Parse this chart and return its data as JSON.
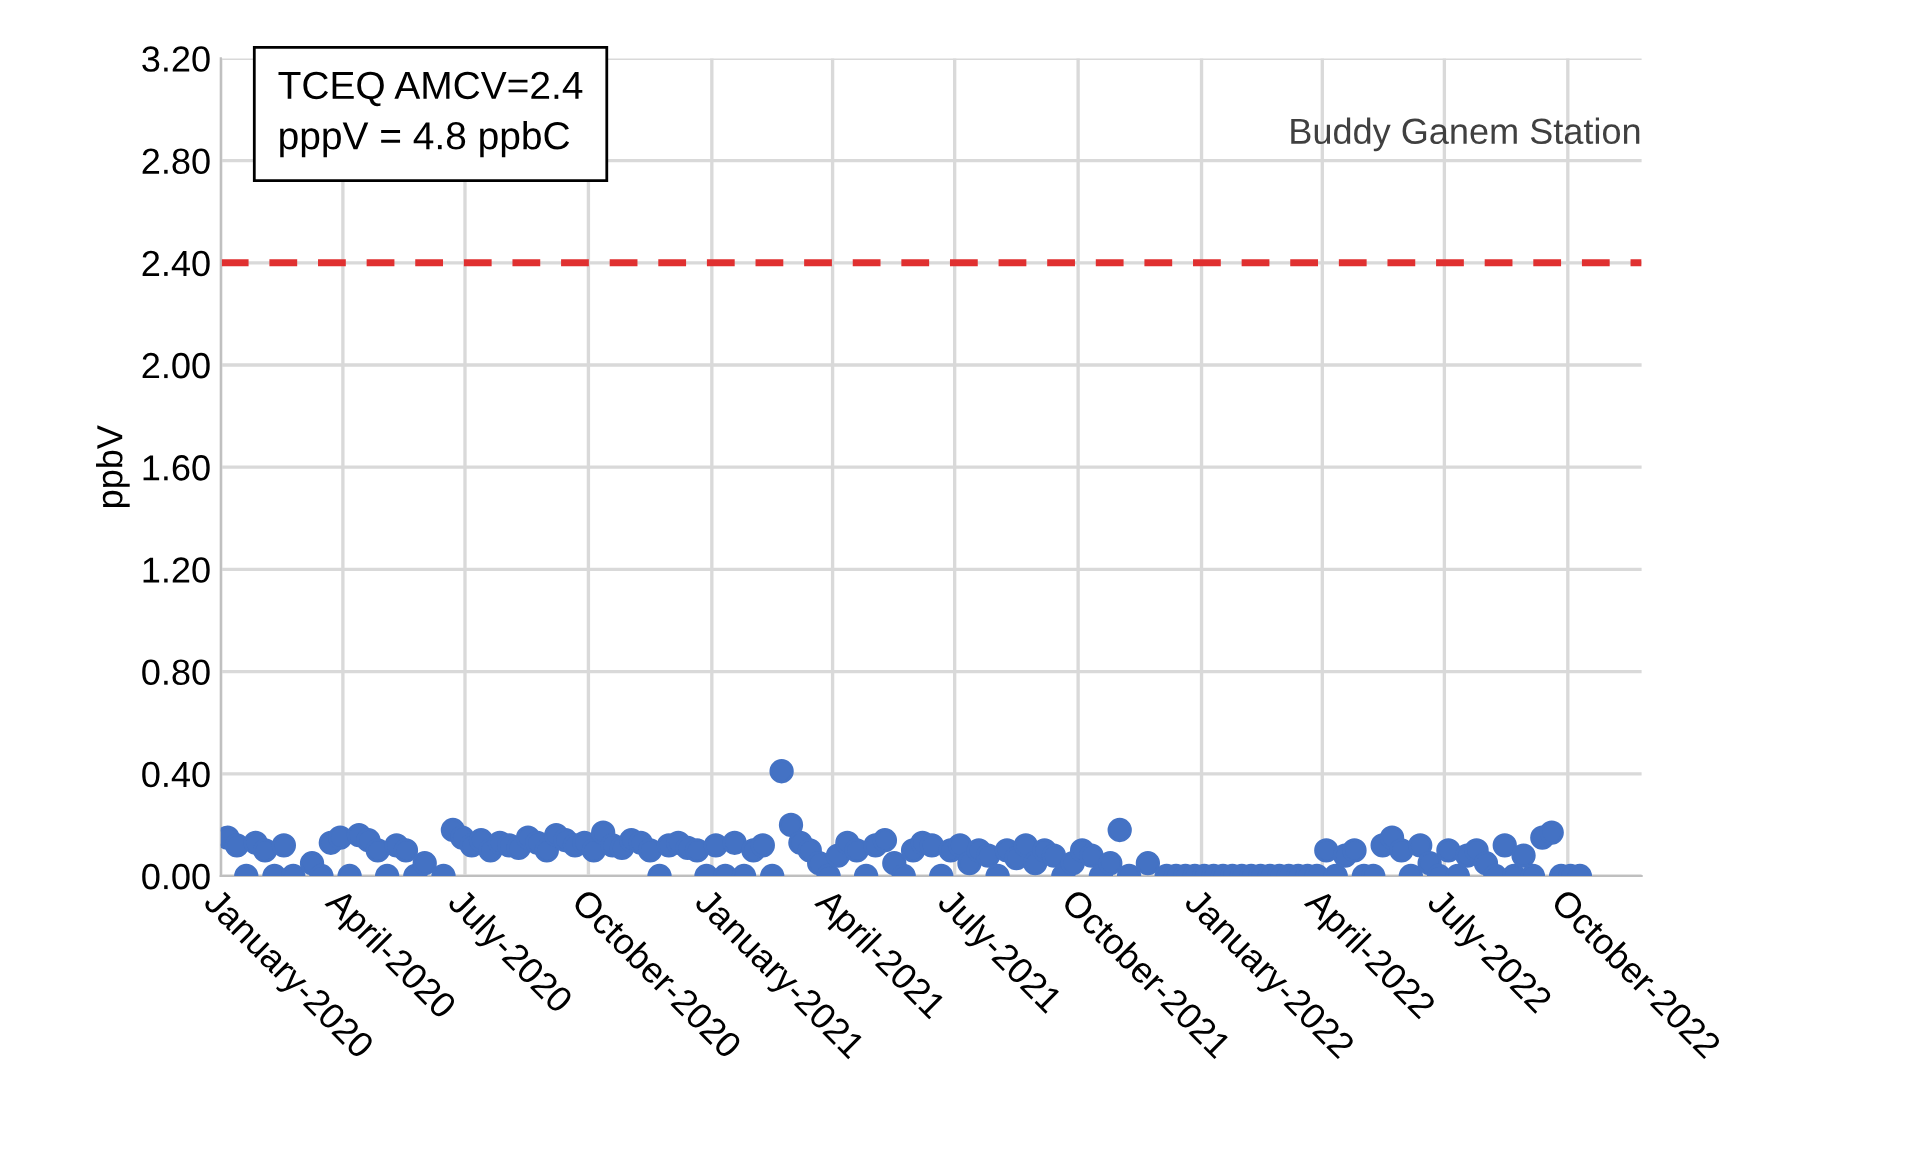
{
  "chart_data": {
    "type": "scatter",
    "title": "Buddy Ganem Station",
    "ylabel": "ppbV",
    "annotations": [
      "TCEQ AMCV=2.4\npppV = 4.8 ppbC"
    ],
    "ref_lines": [
      {
        "axis": "y",
        "value": 2.4,
        "color": "#e03030",
        "line_style": "dashed"
      }
    ],
    "x": [
      "2020-01-06",
      "2020-01-13",
      "2020-01-20",
      "2020-01-27",
      "2020-02-03",
      "2020-02-10",
      "2020-02-17",
      "2020-02-24",
      "2020-03-02",
      "2020-03-09",
      "2020-03-16",
      "2020-03-23",
      "2020-03-30",
      "2020-04-06",
      "2020-04-13",
      "2020-04-20",
      "2020-04-27",
      "2020-05-04",
      "2020-05-11",
      "2020-05-18",
      "2020-05-25",
      "2020-06-01",
      "2020-06-08",
      "2020-06-15",
      "2020-06-22",
      "2020-06-29",
      "2020-07-06",
      "2020-07-13",
      "2020-07-20",
      "2020-07-27",
      "2020-08-03",
      "2020-08-10",
      "2020-08-17",
      "2020-08-24",
      "2020-08-31",
      "2020-09-07",
      "2020-09-14",
      "2020-09-21",
      "2020-09-28",
      "2020-10-05",
      "2020-10-12",
      "2020-10-19",
      "2020-10-26",
      "2020-11-02",
      "2020-11-09",
      "2020-11-16",
      "2020-11-23",
      "2020-11-30",
      "2020-12-07",
      "2020-12-14",
      "2020-12-21",
      "2020-12-28",
      "2021-01-04",
      "2021-01-11",
      "2021-01-18",
      "2021-01-25",
      "2021-02-01",
      "2021-02-08",
      "2021-02-15",
      "2021-02-22",
      "2021-03-01",
      "2021-03-08",
      "2021-03-15",
      "2021-03-22",
      "2021-03-29",
      "2021-04-05",
      "2021-04-12",
      "2021-04-19",
      "2021-04-26",
      "2021-05-03",
      "2021-05-10",
      "2021-05-17",
      "2021-05-24",
      "2021-05-31",
      "2021-06-07",
      "2021-06-14",
      "2021-06-21",
      "2021-06-28",
      "2021-07-05",
      "2021-07-12",
      "2021-07-19",
      "2021-07-26",
      "2021-08-02",
      "2021-08-09",
      "2021-08-16",
      "2021-08-23",
      "2021-08-30",
      "2021-09-06",
      "2021-09-13",
      "2021-09-20",
      "2021-09-27",
      "2021-10-04",
      "2021-10-11",
      "2021-10-18",
      "2021-10-25",
      "2021-11-01",
      "2021-11-08",
      "2021-11-15",
      "2021-11-22",
      "2021-11-29",
      "2021-12-06",
      "2021-12-13",
      "2021-12-20",
      "2021-12-27",
      "2022-01-03",
      "2022-01-10",
      "2022-01-17",
      "2022-01-24",
      "2022-01-31",
      "2022-02-07",
      "2022-02-14",
      "2022-02-21",
      "2022-02-28",
      "2022-03-07",
      "2022-03-14",
      "2022-03-21",
      "2022-03-28",
      "2022-04-04",
      "2022-04-11",
      "2022-04-18",
      "2022-04-25",
      "2022-05-02",
      "2022-05-09",
      "2022-05-16",
      "2022-05-23",
      "2022-05-30",
      "2022-06-06",
      "2022-06-13",
      "2022-06-20",
      "2022-06-27",
      "2022-07-04",
      "2022-07-11",
      "2022-07-18",
      "2022-07-25",
      "2022-08-01",
      "2022-08-08",
      "2022-08-15",
      "2022-08-22",
      "2022-08-29",
      "2022-09-05",
      "2022-09-12",
      "2022-09-19",
      "2022-09-26",
      "2022-10-03",
      "2022-10-10"
    ],
    "series": [
      {
        "color": "#4472c4",
        "values": [
          0.15,
          0.12,
          0.0,
          0.13,
          0.1,
          0.0,
          0.12,
          0.0,
          null,
          0.05,
          0.0,
          0.13,
          0.15,
          0.0,
          0.16,
          0.14,
          0.1,
          0.0,
          0.12,
          0.1,
          0.0,
          0.05,
          null,
          0.0,
          0.18,
          0.15,
          0.12,
          0.14,
          0.1,
          0.13,
          0.12,
          0.11,
          0.15,
          0.13,
          0.1,
          0.16,
          0.14,
          0.12,
          0.13,
          0.1,
          0.17,
          0.12,
          0.11,
          0.14,
          0.13,
          0.1,
          0.0,
          0.12,
          0.13,
          0.11,
          0.1,
          0.0,
          0.12,
          0.0,
          0.13,
          0.0,
          0.1,
          0.12,
          0.0,
          0.41,
          0.2,
          0.13,
          0.1,
          0.05,
          0.0,
          0.08,
          0.13,
          0.1,
          0.0,
          0.12,
          0.14,
          0.05,
          0.0,
          0.1,
          0.13,
          0.12,
          0.0,
          0.1,
          0.12,
          0.05,
          0.1,
          0.08,
          0.0,
          0.1,
          0.07,
          0.12,
          0.05,
          0.1,
          0.08,
          0.0,
          0.05,
          0.1,
          0.08,
          0.0,
          0.05,
          0.18,
          0.0,
          null,
          0.05,
          null,
          0.0,
          0.0,
          0.0,
          0.0,
          0.0,
          0.0,
          0.0,
          0.0,
          0.0,
          0.0,
          0.0,
          0.0,
          0.0,
          0.0,
          0.0,
          0.0,
          0.0,
          0.1,
          0.0,
          0.08,
          0.1,
          0.0,
          0.0,
          0.12,
          0.15,
          0.1,
          0.0,
          0.12,
          0.05,
          0.0,
          0.1,
          0.0,
          0.08,
          0.1,
          0.05,
          0.0,
          0.12,
          0.0,
          0.08,
          0.0,
          0.15,
          0.17,
          0.0,
          0.0,
          0.0
        ]
      }
    ],
    "xlim": [
      "2020-01-01",
      "2022-11-25"
    ],
    "xticks": [
      {
        "value": "2020-01-01",
        "label": "January-2020"
      },
      {
        "value": "2020-04-01",
        "label": "April-2020"
      },
      {
        "value": "2020-07-01",
        "label": "July-2020"
      },
      {
        "value": "2020-10-01",
        "label": "October-2020"
      },
      {
        "value": "2021-01-01",
        "label": "January-2021"
      },
      {
        "value": "2021-04-01",
        "label": "April-2021"
      },
      {
        "value": "2021-07-01",
        "label": "July-2021"
      },
      {
        "value": "2021-10-01",
        "label": "October-2021"
      },
      {
        "value": "2022-01-01",
        "label": "January-2022"
      },
      {
        "value": "2022-04-01",
        "label": "April-2022"
      },
      {
        "value": "2022-07-01",
        "label": "July-2022"
      },
      {
        "value": "2022-10-01",
        "label": "October-2022"
      }
    ],
    "ylim": [
      0,
      3.2
    ],
    "yticks": [
      {
        "value": 0,
        "label": "0.00"
      },
      {
        "value": 0.4,
        "label": "0.40"
      },
      {
        "value": 0.8,
        "label": "0.80"
      },
      {
        "value": 1.2,
        "label": "1.20"
      },
      {
        "value": 1.6,
        "label": "1.60"
      },
      {
        "value": 2.0,
        "label": "2.00"
      },
      {
        "value": 2.4,
        "label": "2.40"
      },
      {
        "value": 2.8,
        "label": "2.80"
      },
      {
        "value": 3.2,
        "label": "3.20"
      }
    ],
    "grid": true,
    "marker": "circle"
  }
}
